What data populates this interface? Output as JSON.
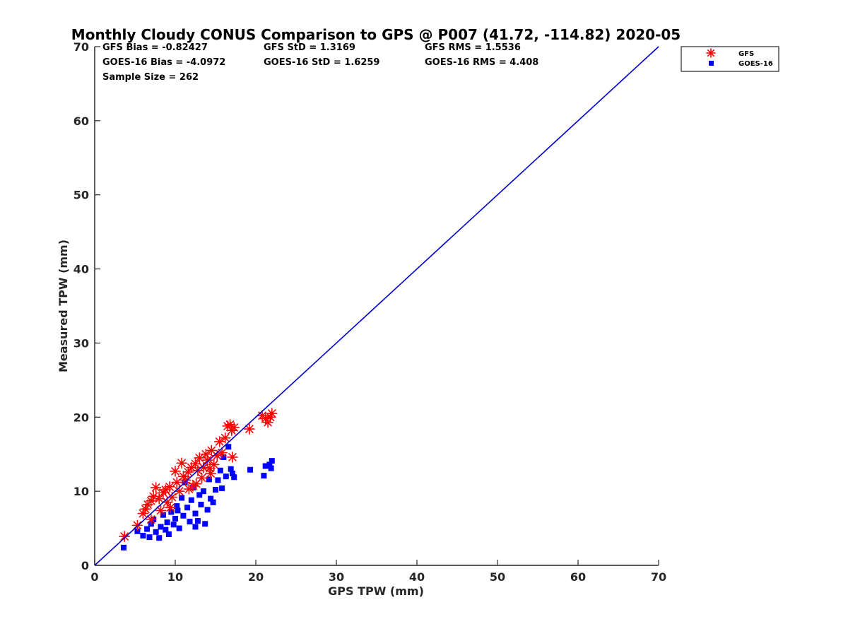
{
  "chart_data": {
    "type": "scatter",
    "title": "Monthly Cloudy CONUS Comparison to GPS @ P007 (41.72, -114.82) 2020-05",
    "xlabel": "GPS TPW (mm)",
    "ylabel": "Measured TPW (mm)",
    "xlim": [
      0,
      70
    ],
    "ylim": [
      0,
      70
    ],
    "xticks": [
      0,
      10,
      20,
      30,
      40,
      50,
      60,
      70
    ],
    "yticks": [
      0,
      10,
      20,
      30,
      40,
      50,
      60,
      70
    ],
    "grid": false,
    "legend_position": "top-right-outside",
    "stats": [
      [
        "GFS Bias = -0.82427",
        "GFS StD = 1.3169",
        "GFS RMS = 1.5536"
      ],
      [
        "GOES-16 Bias = -4.0972",
        "GOES-16 StD = 1.6259",
        "GOES-16 RMS = 4.408"
      ],
      [
        "Sample Size = 262"
      ]
    ],
    "reference_line": {
      "x": [
        0,
        70
      ],
      "y": [
        0,
        70
      ],
      "color": "#0000d0"
    },
    "series": [
      {
        "name": "GFS",
        "marker": "asterisk",
        "color": "#ff0000",
        "points": [
          [
            3.7,
            3.9
          ],
          [
            5.3,
            5.4
          ],
          [
            6.0,
            7.0
          ],
          [
            6.3,
            7.6
          ],
          [
            6.6,
            8.2
          ],
          [
            7.0,
            8.7
          ],
          [
            7.3,
            9.3
          ],
          [
            7.6,
            10.5
          ],
          [
            7.0,
            6.2
          ],
          [
            8.0,
            9.0
          ],
          [
            8.2,
            7.4
          ],
          [
            8.5,
            9.8
          ],
          [
            8.8,
            10.2
          ],
          [
            9.0,
            8.5
          ],
          [
            9.3,
            10.6
          ],
          [
            9.6,
            9.2
          ],
          [
            10.0,
            12.7
          ],
          [
            10.2,
            11.2
          ],
          [
            10.5,
            10.0
          ],
          [
            10.8,
            13.8
          ],
          [
            11.0,
            12.0
          ],
          [
            11.3,
            11.5
          ],
          [
            11.6,
            12.6
          ],
          [
            12.0,
            13.2
          ],
          [
            12.2,
            10.7
          ],
          [
            12.5,
            13.7
          ],
          [
            12.8,
            12.8
          ],
          [
            13.0,
            14.5
          ],
          [
            13.3,
            11.8
          ],
          [
            13.5,
            13.2
          ],
          [
            13.8,
            15.0
          ],
          [
            14.0,
            14.2
          ],
          [
            14.3,
            13.1
          ],
          [
            14.5,
            15.5
          ],
          [
            14.8,
            13.6
          ],
          [
            15.2,
            14.8
          ],
          [
            15.5,
            16.7
          ],
          [
            15.8,
            15.2
          ],
          [
            16.2,
            17.2
          ],
          [
            16.5,
            18.8
          ],
          [
            16.8,
            19.0
          ],
          [
            17.0,
            18.2
          ],
          [
            17.3,
            18.6
          ],
          [
            17.1,
            14.6
          ],
          [
            19.2,
            18.4
          ],
          [
            20.8,
            20.2
          ],
          [
            21.2,
            19.8
          ],
          [
            21.5,
            19.3
          ],
          [
            21.8,
            20.0
          ],
          [
            22.0,
            20.5
          ],
          [
            9.4,
            7.8
          ],
          [
            11.7,
            10.3
          ],
          [
            14.4,
            12.4
          ],
          [
            12.6,
            11.0
          ]
        ]
      },
      {
        "name": "GOES-16",
        "marker": "square",
        "color": "#0000ff",
        "points": [
          [
            3.6,
            2.4
          ],
          [
            5.3,
            4.6
          ],
          [
            6.0,
            4.0
          ],
          [
            6.5,
            4.9
          ],
          [
            6.8,
            3.8
          ],
          [
            7.0,
            5.6
          ],
          [
            7.3,
            6.2
          ],
          [
            7.6,
            4.5
          ],
          [
            8.0,
            3.7
          ],
          [
            8.2,
            5.2
          ],
          [
            8.5,
            6.8
          ],
          [
            8.8,
            4.8
          ],
          [
            9.0,
            5.8
          ],
          [
            9.2,
            4.2
          ],
          [
            9.5,
            7.2
          ],
          [
            9.8,
            5.5
          ],
          [
            10.0,
            6.3
          ],
          [
            10.2,
            8.0
          ],
          [
            10.5,
            5.0
          ],
          [
            10.8,
            9.1
          ],
          [
            11.0,
            6.7
          ],
          [
            11.2,
            11.2
          ],
          [
            11.5,
            7.8
          ],
          [
            11.8,
            5.9
          ],
          [
            12.0,
            8.8
          ],
          [
            12.2,
            10.5
          ],
          [
            12.5,
            7.0
          ],
          [
            12.8,
            6.0
          ],
          [
            13.0,
            9.5
          ],
          [
            13.2,
            8.2
          ],
          [
            13.5,
            10.0
          ],
          [
            13.7,
            5.6
          ],
          [
            14.0,
            7.5
          ],
          [
            14.2,
            11.6
          ],
          [
            14.4,
            9.0
          ],
          [
            14.7,
            8.5
          ],
          [
            15.0,
            10.2
          ],
          [
            15.3,
            11.5
          ],
          [
            15.6,
            12.8
          ],
          [
            15.8,
            10.4
          ],
          [
            16.0,
            14.6
          ],
          [
            16.3,
            12.0
          ],
          [
            16.6,
            16.0
          ],
          [
            16.9,
            13.0
          ],
          [
            17.1,
            12.4
          ],
          [
            17.3,
            11.9
          ],
          [
            19.3,
            12.9
          ],
          [
            21.0,
            12.1
          ],
          [
            21.2,
            13.4
          ],
          [
            21.7,
            13.6
          ],
          [
            22.0,
            14.1
          ],
          [
            21.9,
            13.1
          ],
          [
            12.5,
            5.2
          ],
          [
            10.3,
            7.4
          ]
        ]
      }
    ]
  }
}
